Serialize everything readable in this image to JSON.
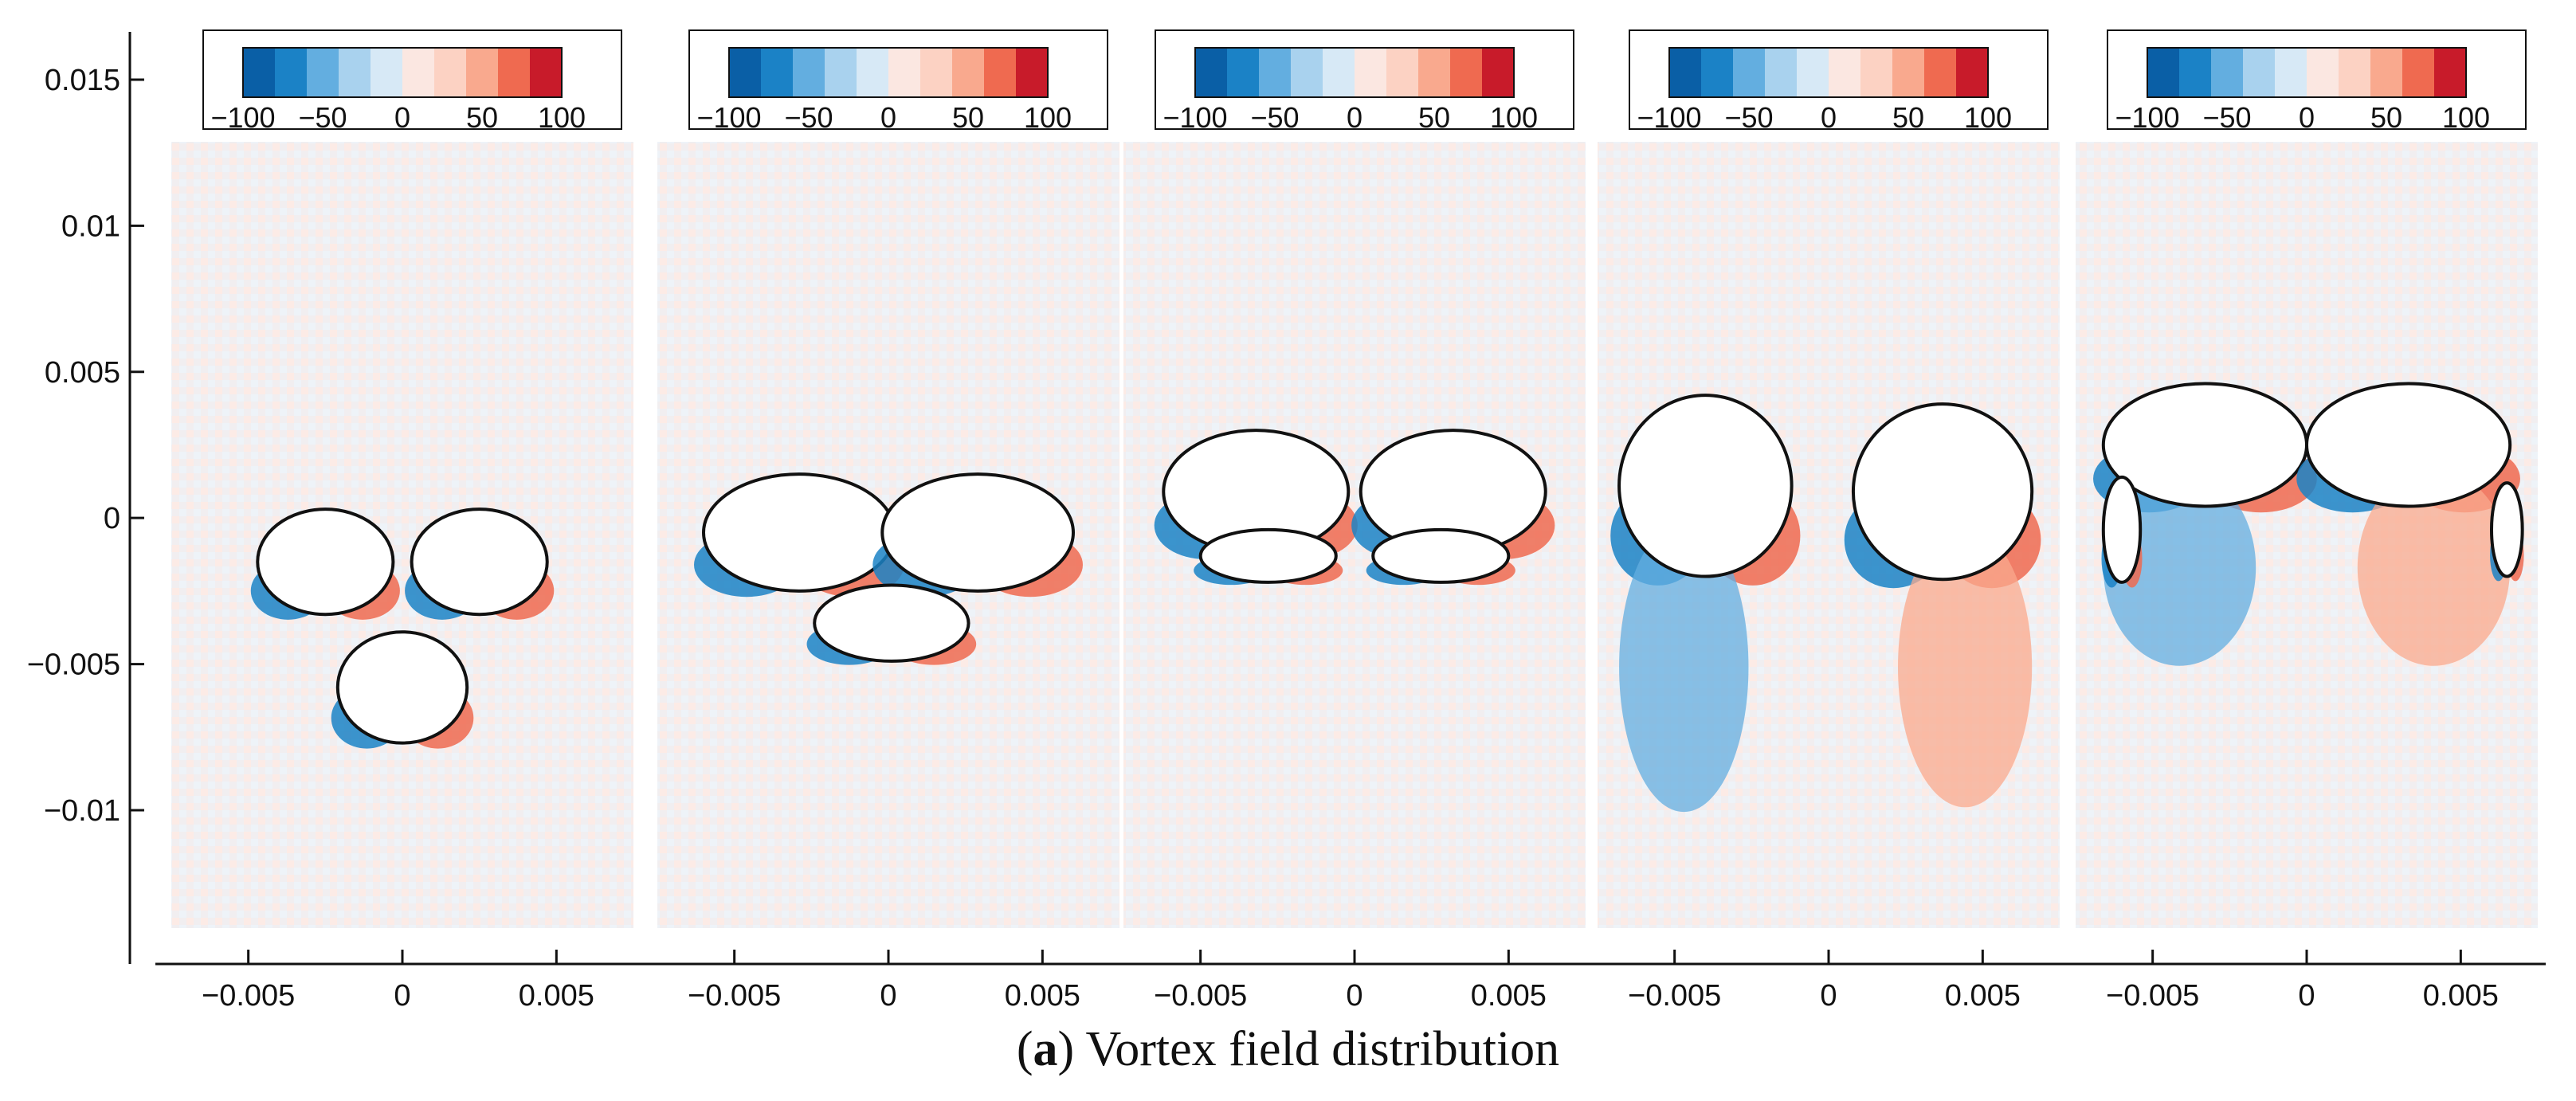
{
  "caption": {
    "letter": "a",
    "prefix": "(",
    "suffix": ") Vortex field distribution"
  },
  "chart_data": {
    "type": "heatmap",
    "title": "Vortex field distribution",
    "xlabel": "",
    "ylabel": "",
    "ylim": [
      -0.013,
      0.016
    ],
    "y_ticks": [
      0.015,
      0.01,
      0.005,
      0,
      -0.005,
      -0.01
    ],
    "y_tick_labels": [
      "0.015",
      "0.01",
      "0.005",
      "0",
      "−0.005",
      "−0.01"
    ],
    "xlim": [
      -0.0075,
      0.0075
    ],
    "x_ticks": [
      -0.005,
      0,
      0.005
    ],
    "x_tick_labels": [
      "−0.005",
      "0",
      "0.005"
    ],
    "colorbar": {
      "range": [
        -100,
        100
      ],
      "ticks": [
        -100,
        -50,
        0,
        50,
        100
      ],
      "tick_labels": [
        "−100",
        "−50",
        "0",
        "50",
        "100"
      ],
      "colors": [
        "#0a5fa6",
        "#1b82c6",
        "#63aee0",
        "#a9d2ee",
        "#d7e9f6",
        "#fbe7e1",
        "#fcd2c3",
        "#f9a98e",
        "#ef6a50",
        "#c81b2a"
      ]
    },
    "panels": [
      {
        "bubbles": [
          {
            "cx": -0.0025,
            "cy": -0.0015,
            "rx": 0.0022,
            "ry": 0.0018
          },
          {
            "cx": 0.0025,
            "cy": -0.0015,
            "rx": 0.0022,
            "ry": 0.0018
          },
          {
            "cx": 0,
            "cy": -0.0058,
            "rx": 0.0021,
            "ry": 0.0019
          }
        ]
      },
      {
        "bubbles": [
          {
            "cx": -0.0029,
            "cy": -0.0005,
            "rx": 0.0031,
            "ry": 0.002
          },
          {
            "cx": 0.0029,
            "cy": -0.0005,
            "rx": 0.0031,
            "ry": 0.002
          },
          {
            "cx": 0.0001,
            "cy": -0.0036,
            "rx": 0.0025,
            "ry": 0.0013
          }
        ]
      },
      {
        "bubbles": [
          {
            "cx": -0.0032,
            "cy": 0.0009,
            "rx": 0.003,
            "ry": 0.0021
          },
          {
            "cx": 0.0032,
            "cy": 0.0009,
            "rx": 0.003,
            "ry": 0.0021
          },
          {
            "cx": -0.0028,
            "cy": -0.0013,
            "rx": 0.0022,
            "ry": 0.0009
          },
          {
            "cx": 0.0028,
            "cy": -0.0013,
            "rx": 0.0022,
            "ry": 0.0009
          }
        ]
      },
      {
        "bubbles": [
          {
            "cx": -0.004,
            "cy": 0.0011,
            "rx": 0.0028,
            "ry": 0.0031
          },
          {
            "cx": 0.0037,
            "cy": 0.0009,
            "rx": 0.0029,
            "ry": 0.003
          }
        ]
      },
      {
        "bubbles": [
          {
            "cx": -0.0033,
            "cy": 0.0025,
            "rx": 0.0033,
            "ry": 0.0021
          },
          {
            "cx": 0.0033,
            "cy": 0.0025,
            "rx": 0.0033,
            "ry": 0.0021
          },
          {
            "cx": -0.006,
            "cy": -0.0004,
            "rx": 0.0006,
            "ry": 0.0018
          },
          {
            "cx": 0.0065,
            "cy": -0.0004,
            "rx": 0.0005,
            "ry": 0.0016
          }
        ]
      }
    ]
  }
}
